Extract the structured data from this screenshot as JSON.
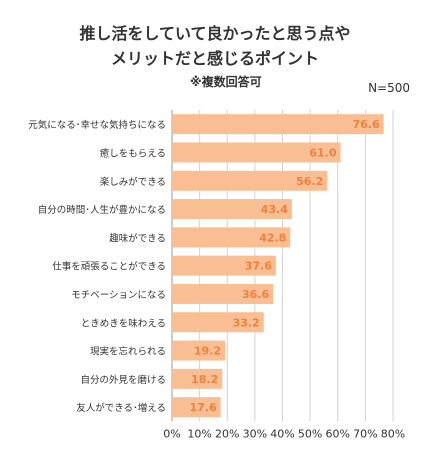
{
  "header": {
    "title_line1": "推し活をしていて良かったと思う点や",
    "title_line2": "メリットだと感じるポイント",
    "subtitle": "※複数回答可",
    "sample_size": "N=500"
  },
  "colors": {
    "bar": "#F9BE92",
    "bar_label": "#F08040",
    "grid": "#D3D3D3"
  },
  "chart_data": {
    "type": "bar",
    "orientation": "horizontal",
    "categories": [
      "元気になる･幸せな気持ちになる",
      "癒しをもらえる",
      "楽しみができる",
      "自分の時間･人生が豊かになる",
      "趣味ができる",
      "仕事を頑張ることができる",
      "モチベーションになる",
      "ときめきを味わえる",
      "現実を忘れられる",
      "自分の外見を磨ける",
      "友人ができる･増える"
    ],
    "values": [
      76.6,
      61.0,
      56.2,
      43.4,
      42.8,
      37.6,
      36.6,
      33.2,
      19.2,
      18.2,
      17.6
    ],
    "value_labels": [
      "76.6",
      "61.0",
      "56.2",
      "43.4",
      "42.8",
      "37.6",
      "36.6",
      "33.2",
      "19.2",
      "18.2",
      "17.6"
    ],
    "xlim": [
      0,
      80
    ],
    "xticks": [
      "0%",
      "10%",
      "20%",
      "30%",
      "40%",
      "50%",
      "60%",
      "70%",
      "80%"
    ],
    "grid": true
  }
}
